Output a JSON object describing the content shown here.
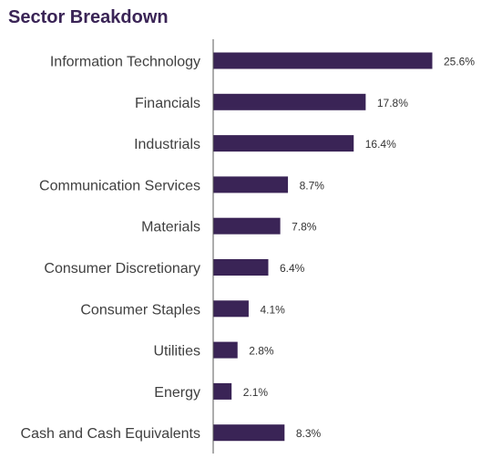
{
  "title": "Sector Breakdown",
  "colors": {
    "bar": "#3a2456",
    "title": "#3a2456",
    "axis": "#595959",
    "label": "#404040",
    "value_label": "#333333"
  },
  "chart_data": {
    "type": "bar",
    "orientation": "horizontal",
    "title": "Sector Breakdown",
    "categories": [
      "Information Technology",
      "Financials",
      "Industrials",
      "Communication Services",
      "Materials",
      "Consumer Discretionary",
      "Consumer Staples",
      "Utilities",
      "Energy",
      "Cash and Cash Equivalents"
    ],
    "values": [
      25.6,
      17.8,
      16.4,
      8.7,
      7.8,
      6.4,
      4.1,
      2.8,
      2.1,
      8.3
    ],
    "value_labels": [
      "25.6%",
      "17.8%",
      "16.4%",
      "8.7%",
      "7.8%",
      "6.4%",
      "4.1%",
      "2.8%",
      "2.1%",
      "8.3%"
    ],
    "xlabel": "",
    "ylabel": "",
    "xlim": [
      0,
      25.6
    ],
    "unit": "%",
    "grid": false,
    "legend": "none"
  }
}
